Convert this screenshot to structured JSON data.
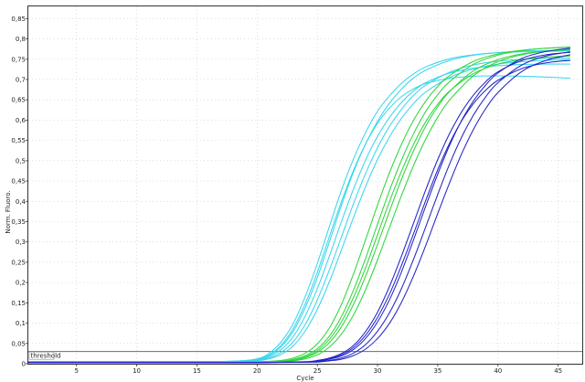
{
  "chart_data": {
    "type": "line",
    "title": "",
    "xlabel": "Cycle",
    "ylabel": "Norm. Fluoro.",
    "xlim": [
      1,
      47
    ],
    "ylim": [
      0,
      0.88
    ],
    "x_ticks": [
      5,
      10,
      15,
      20,
      25,
      30,
      35,
      40,
      45
    ],
    "x_tick_labels": [
      "5",
      "10",
      "15",
      "20",
      "25",
      "30",
      "35",
      "40",
      "45"
    ],
    "y_ticks": [
      0,
      0.05,
      0.1,
      0.15,
      0.2,
      0.25,
      0.3,
      0.35,
      0.4,
      0.45,
      0.5,
      0.55,
      0.6,
      0.65,
      0.7,
      0.75,
      0.8,
      0.85
    ],
    "y_tick_labels": [
      "0",
      "0,05",
      "0,1",
      "0,15",
      "0,2",
      "0,25",
      "0,3",
      "0,35",
      "0,4",
      "0,45",
      "0,5",
      "0,55",
      "0,6",
      "0,65",
      "0,7",
      "0,75",
      "0,8",
      "0,85"
    ],
    "grid": true,
    "threshold": {
      "label": "threshold",
      "value": 0.03,
      "color": "#555555"
    },
    "series_groups": [
      {
        "color": "#39d6ec",
        "x": [
          1,
          5,
          10,
          15,
          18,
          20,
          21,
          22,
          23,
          24,
          25,
          26,
          27,
          28,
          29,
          30,
          31,
          32,
          33,
          34,
          36,
          38,
          40,
          42,
          44,
          46
        ],
        "curves": [
          [
            0.005,
            0.005,
            0.005,
            0.005,
            0.006,
            0.012,
            0.026,
            0.054,
            0.099,
            0.166,
            0.247,
            0.338,
            0.427,
            0.504,
            0.569,
            0.622,
            0.66,
            0.691,
            0.714,
            0.731,
            0.751,
            0.761,
            0.766,
            0.768,
            0.769,
            0.77
          ],
          [
            0.005,
            0.005,
            0.005,
            0.005,
            0.006,
            0.01,
            0.02,
            0.042,
            0.08,
            0.138,
            0.212,
            0.3,
            0.39,
            0.472,
            0.541,
            0.597,
            0.642,
            0.677,
            0.704,
            0.723,
            0.747,
            0.76,
            0.766,
            0.77,
            0.771,
            0.772
          ],
          [
            0.005,
            0.005,
            0.005,
            0.005,
            0.006,
            0.009,
            0.017,
            0.035,
            0.067,
            0.118,
            0.185,
            0.265,
            0.35,
            0.43,
            0.501,
            0.56,
            0.607,
            0.644,
            0.672,
            0.692,
            0.716,
            0.728,
            0.734,
            0.737,
            0.738,
            0.738
          ],
          [
            0.005,
            0.005,
            0.005,
            0.005,
            0.005,
            0.008,
            0.014,
            0.028,
            0.054,
            0.097,
            0.157,
            0.231,
            0.312,
            0.394,
            0.468,
            0.532,
            0.585,
            0.627,
            0.661,
            0.686,
            0.718,
            0.736,
            0.745,
            0.75,
            0.752,
            0.753
          ],
          [
            0.005,
            0.005,
            0.005,
            0.005,
            0.005,
            0.007,
            0.012,
            0.023,
            0.044,
            0.081,
            0.134,
            0.202,
            0.28,
            0.36,
            0.436,
            0.503,
            0.559,
            0.605,
            0.641,
            0.669,
            0.705,
            0.726,
            0.738,
            0.744,
            0.747,
            0.749
          ],
          [
            0.005,
            0.005,
            0.005,
            0.005,
            0.006,
            0.011,
            0.022,
            0.046,
            0.087,
            0.148,
            0.225,
            0.313,
            0.399,
            0.476,
            0.541,
            0.592,
            0.63,
            0.658,
            0.677,
            0.69,
            0.703,
            0.708,
            0.709,
            0.708,
            0.706,
            0.703
          ]
        ]
      },
      {
        "color": "#2ed63a",
        "x": [
          1,
          5,
          10,
          15,
          20,
          22,
          23,
          24,
          25,
          26,
          27,
          28,
          29,
          30,
          31,
          32,
          33,
          34,
          35,
          36,
          38,
          40,
          42,
          44,
          46
        ],
        "curves": [
          [
            0.004,
            0.004,
            0.004,
            0.004,
            0.005,
            0.008,
            0.014,
            0.026,
            0.049,
            0.088,
            0.146,
            0.221,
            0.305,
            0.391,
            0.471,
            0.541,
            0.6,
            0.647,
            0.683,
            0.71,
            0.745,
            0.763,
            0.772,
            0.777,
            0.779
          ],
          [
            0.004,
            0.004,
            0.004,
            0.004,
            0.004,
            0.006,
            0.011,
            0.02,
            0.037,
            0.068,
            0.116,
            0.181,
            0.259,
            0.344,
            0.427,
            0.502,
            0.567,
            0.621,
            0.663,
            0.695,
            0.738,
            0.76,
            0.771,
            0.777,
            0.78
          ],
          [
            0.004,
            0.004,
            0.004,
            0.004,
            0.004,
            0.005,
            0.008,
            0.015,
            0.028,
            0.052,
            0.091,
            0.146,
            0.215,
            0.294,
            0.376,
            0.455,
            0.525,
            0.585,
            0.633,
            0.671,
            0.722,
            0.749,
            0.763,
            0.77,
            0.773
          ],
          [
            0.004,
            0.004,
            0.004,
            0.004,
            0.004,
            0.005,
            0.007,
            0.012,
            0.022,
            0.041,
            0.073,
            0.12,
            0.182,
            0.256,
            0.336,
            0.415,
            0.489,
            0.553,
            0.607,
            0.65,
            0.71,
            0.744,
            0.761,
            0.77,
            0.775
          ],
          [
            0.004,
            0.004,
            0.004,
            0.004,
            0.004,
            0.005,
            0.009,
            0.017,
            0.032,
            0.06,
            0.103,
            0.163,
            0.236,
            0.318,
            0.4,
            0.475,
            0.541,
            0.596,
            0.639,
            0.672,
            0.715,
            0.738,
            0.749,
            0.755,
            0.758
          ]
        ]
      },
      {
        "color": "#2424c8",
        "x": [
          1,
          5,
          10,
          15,
          20,
          24,
          25,
          26,
          27,
          28,
          29,
          30,
          31,
          32,
          33,
          34,
          35,
          36,
          37,
          38,
          39,
          40,
          42,
          44,
          46
        ],
        "curves": [
          [
            0.003,
            0.003,
            0.003,
            0.003,
            0.003,
            0.005,
            0.008,
            0.014,
            0.025,
            0.045,
            0.079,
            0.127,
            0.191,
            0.266,
            0.347,
            0.428,
            0.503,
            0.568,
            0.621,
            0.663,
            0.695,
            0.719,
            0.747,
            0.761,
            0.767
          ],
          [
            0.003,
            0.003,
            0.003,
            0.003,
            0.003,
            0.004,
            0.006,
            0.011,
            0.019,
            0.035,
            0.062,
            0.103,
            0.158,
            0.227,
            0.306,
            0.388,
            0.467,
            0.539,
            0.6,
            0.649,
            0.687,
            0.716,
            0.752,
            0.769,
            0.777
          ],
          [
            0.003,
            0.003,
            0.003,
            0.003,
            0.003,
            0.004,
            0.005,
            0.008,
            0.014,
            0.026,
            0.047,
            0.08,
            0.126,
            0.186,
            0.258,
            0.337,
            0.417,
            0.493,
            0.559,
            0.614,
            0.658,
            0.692,
            0.736,
            0.758,
            0.768
          ],
          [
            0.003,
            0.003,
            0.003,
            0.003,
            0.003,
            0.004,
            0.004,
            0.007,
            0.011,
            0.02,
            0.036,
            0.062,
            0.1,
            0.152,
            0.217,
            0.291,
            0.37,
            0.447,
            0.518,
            0.579,
            0.629,
            0.668,
            0.72,
            0.747,
            0.761
          ],
          [
            0.003,
            0.003,
            0.003,
            0.003,
            0.003,
            0.004,
            0.007,
            0.012,
            0.022,
            0.04,
            0.07,
            0.114,
            0.172,
            0.243,
            0.321,
            0.402,
            0.478,
            0.544,
            0.599,
            0.642,
            0.674,
            0.698,
            0.727,
            0.741,
            0.747
          ]
        ]
      }
    ]
  }
}
